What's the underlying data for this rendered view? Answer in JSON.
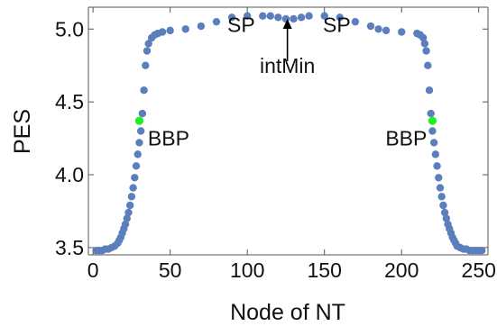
{
  "chart_data": {
    "type": "scatter",
    "xlabel": "Node of NT",
    "ylabel": "PES",
    "xlim": [
      -3,
      256
    ],
    "ylim": [
      3.45,
      5.15
    ],
    "xticks": [
      "0",
      "50",
      "100",
      "150",
      "200",
      "250"
    ],
    "yticks": [
      "3.5",
      "4.0",
      "4.5",
      "5.0"
    ],
    "grid": false,
    "series": [
      {
        "color": "#5b7fbd",
        "x": [
          2,
          4,
          6,
          8,
          10,
          12,
          14,
          16,
          17,
          18,
          19,
          20,
          21,
          22,
          23,
          24,
          25,
          26,
          27,
          28,
          29,
          30,
          31,
          32,
          33,
          34,
          35,
          36,
          38,
          40,
          42,
          45,
          50,
          60,
          70,
          80,
          90,
          100,
          110,
          115,
          120,
          125,
          130,
          135,
          140,
          150,
          160,
          170,
          180,
          185,
          190,
          200,
          210,
          212,
          214,
          215,
          216,
          217,
          218,
          219,
          220,
          221,
          222,
          223,
          224,
          225,
          226,
          227,
          228,
          229,
          230,
          231,
          232,
          233,
          234,
          235,
          236,
          238,
          240,
          242,
          244,
          246,
          248,
          250,
          252
        ],
        "y": [
          3.48,
          3.48,
          3.48,
          3.49,
          3.49,
          3.5,
          3.51,
          3.53,
          3.55,
          3.57,
          3.6,
          3.63,
          3.66,
          3.7,
          3.74,
          3.79,
          3.85,
          3.91,
          3.98,
          4.06,
          4.14,
          4.22,
          4.3,
          4.42,
          4.58,
          4.75,
          4.85,
          4.9,
          4.94,
          4.96,
          4.97,
          4.98,
          4.99,
          5.0,
          5.02,
          5.05,
          5.08,
          5.09,
          5.09,
          5.09,
          5.08,
          5.07,
          5.07,
          5.08,
          5.09,
          5.09,
          5.08,
          5.05,
          5.02,
          5.0,
          4.99,
          4.98,
          4.97,
          4.96,
          4.94,
          4.9,
          4.85,
          4.75,
          4.58,
          4.42,
          4.3,
          4.22,
          4.14,
          4.06,
          3.98,
          3.91,
          3.85,
          3.79,
          3.74,
          3.7,
          3.66,
          3.63,
          3.6,
          3.57,
          3.55,
          3.53,
          3.51,
          3.5,
          3.49,
          3.49,
          3.48,
          3.48,
          3.48,
          3.48,
          3.48
        ]
      }
    ],
    "highlights": [
      {
        "color": "#22ee22",
        "x": 30,
        "y": 4.37
      },
      {
        "color": "#22ee22",
        "x": 220,
        "y": 4.37
      }
    ],
    "annotations": [
      {
        "text": "SP",
        "x": 96,
        "y": 4.98
      },
      {
        "text": "SP",
        "x": 158,
        "y": 4.98
      },
      {
        "text": "intMin",
        "x": 126,
        "y": 4.7
      },
      {
        "text": "BBP",
        "x": 49,
        "y": 4.2
      },
      {
        "text": "BBP",
        "x": 203,
        "y": 4.2
      }
    ],
    "arrow": {
      "x": 126,
      "from_y": 4.78,
      "to_y": 5.07
    }
  }
}
